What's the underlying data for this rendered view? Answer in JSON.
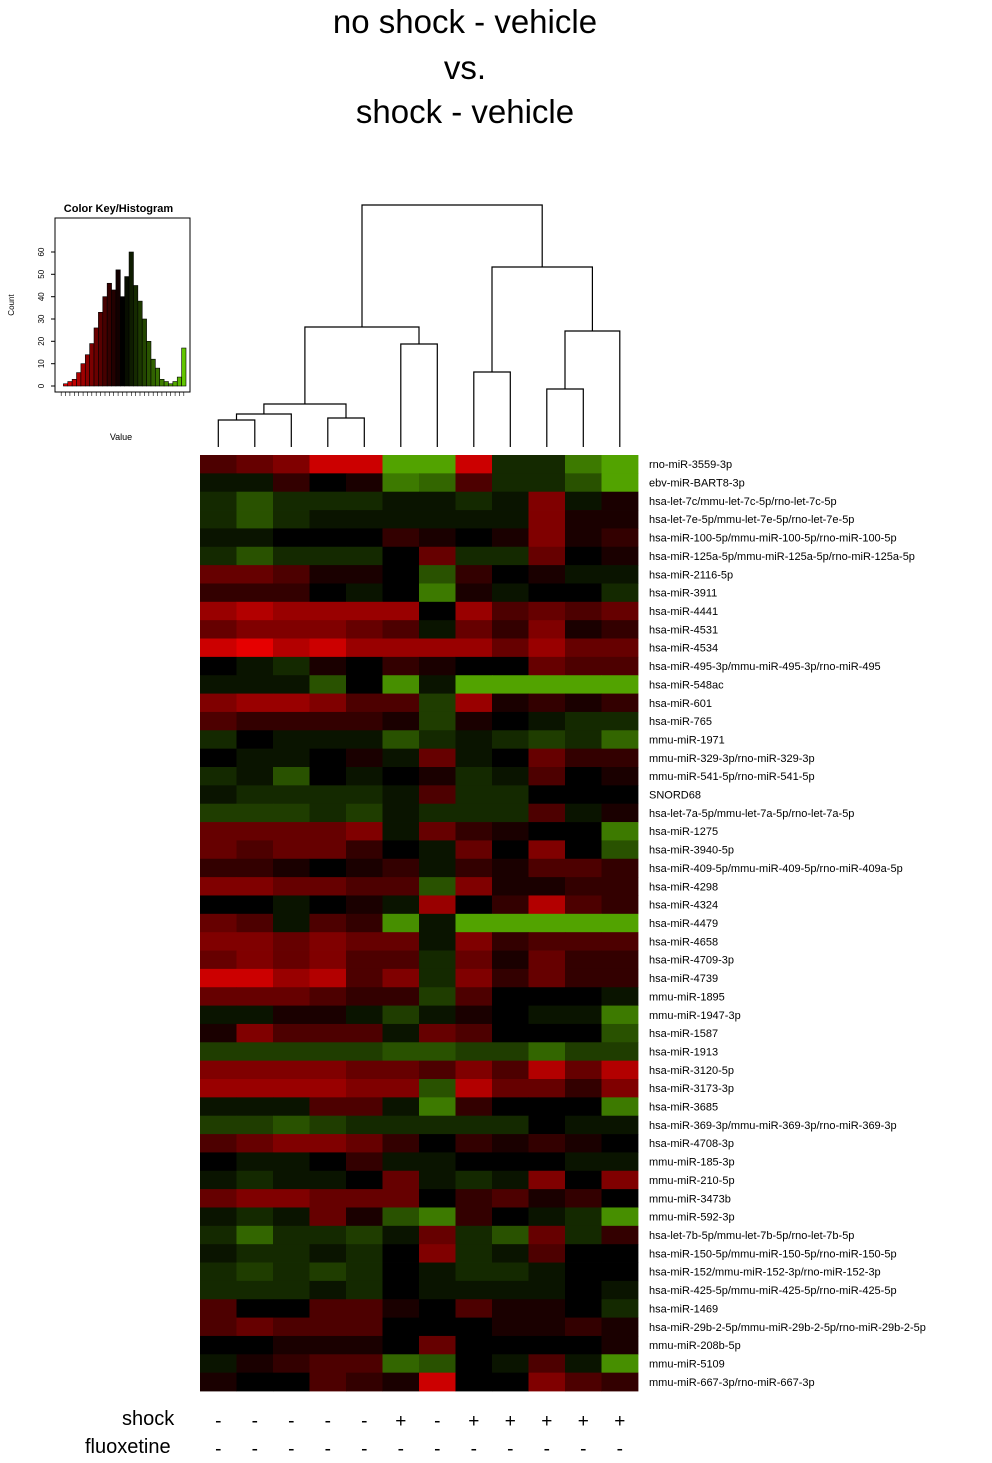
{
  "title": {
    "line1": "no shock - vehicle",
    "line2": "vs.",
    "line3": "shock - vehicle"
  },
  "conditions": {
    "shock_label": "shock",
    "fluoxetine_label": "fluoxetine",
    "shock": [
      "-",
      "-",
      "-",
      "-",
      "-",
      "+",
      "-",
      "+",
      "+",
      "+",
      "+",
      "+"
    ],
    "fluoxetine": [
      "-",
      "-",
      "-",
      "-",
      "-",
      "-",
      "-",
      "-",
      "-",
      "-",
      "-",
      "-"
    ]
  },
  "colors": {
    "low": "#ff0000",
    "mid": "#000000",
    "high": "#66cc00"
  },
  "chart_data": [
    {
      "type": "heatmap",
      "n_columns": 12,
      "scale": "z-score, -1 = red, 0 = black, 1 = green",
      "rows": [
        "rno-miR-3559-3p",
        "ebv-miR-BART8-3p",
        "hsa-let-7c/mmu-let-7c-5p/rno-let-7c-5p",
        "hsa-let-7e-5p/mmu-let-7e-5p/rno-let-7e-5p",
        "hsa-miR-100-5p/mmu-miR-100-5p/rno-miR-100-5p",
        "hsa-miR-125a-5p/mmu-miR-125a-5p/rno-miR-125a-5p",
        "hsa-miR-2116-5p",
        "hsa-miR-3911",
        "hsa-miR-4441",
        "hsa-miR-4531",
        "hsa-miR-4534",
        "hsa-miR-495-3p/mmu-miR-495-3p/rno-miR-495",
        "hsa-miR-548ac",
        "hsa-miR-601",
        "hsa-miR-765",
        "mmu-miR-1971",
        "mmu-miR-329-3p/rno-miR-329-3p",
        "mmu-miR-541-5p/rno-miR-541-5p",
        "SNORD68",
        "hsa-let-7a-5p/mmu-let-7a-5p/rno-let-7a-5p",
        "hsa-miR-1275",
        "hsa-miR-3940-5p",
        "hsa-miR-409-5p/mmu-miR-409-5p/rno-miR-409a-5p",
        "hsa-miR-4298",
        "hsa-miR-4324",
        "hsa-miR-4479",
        "hsa-miR-4658",
        "hsa-miR-4709-3p",
        "hsa-miR-4739",
        "mmu-miR-1895",
        "mmu-miR-1947-3p",
        "hsa-miR-1587",
        "hsa-miR-1913",
        "hsa-miR-3120-5p",
        "hsa-miR-3173-3p",
        "hsa-miR-3685",
        "hsa-miR-369-3p/mmu-miR-369-3p/rno-miR-369-3p",
        "hsa-miR-4708-3p",
        "mmu-miR-185-3p",
        "mmu-miR-210-5p",
        "mmu-miR-3473b",
        "mmu-miR-592-3p",
        "hsa-let-7b-5p/mmu-let-7b-5p/rno-let-7b-5p",
        "hsa-miR-150-5p/mmu-miR-150-5p/rno-miR-150-5p",
        "hsa-miR-152/mmu-miR-152-3p/rno-miR-152-3p",
        "hsa-miR-425-5p/mmu-miR-425-5p/rno-miR-425-5p",
        "hsa-miR-1469",
        "hsa-miR-29b-2-5p/mmu-miR-29b-2-5p/rno-miR-29b-2-5p",
        "mmu-miR-208b-5p",
        "mmu-miR-5109",
        "mmu-miR-667-3p/rno-miR-667-3p"
      ],
      "values": [
        [
          -0.3,
          -0.4,
          -0.5,
          -0.8,
          -0.8,
          0.8,
          0.8,
          -0.8,
          0.2,
          0.2,
          0.6,
          0.8
        ],
        [
          0.1,
          0.1,
          -0.2,
          0.0,
          -0.1,
          0.6,
          0.5,
          -0.3,
          0.2,
          0.2,
          0.4,
          0.8
        ],
        [
          0.2,
          0.4,
          0.2,
          0.2,
          0.2,
          0.1,
          0.1,
          0.2,
          0.1,
          -0.5,
          0.1,
          -0.1
        ],
        [
          0.2,
          0.4,
          0.2,
          0.1,
          0.1,
          0.1,
          0.1,
          0.1,
          0.1,
          -0.5,
          -0.1,
          -0.1
        ],
        [
          0.1,
          0.1,
          0.0,
          0.0,
          0.0,
          -0.2,
          -0.1,
          0.0,
          -0.1,
          -0.5,
          -0.1,
          -0.2
        ],
        [
          0.2,
          0.4,
          0.2,
          0.2,
          0.2,
          0.0,
          -0.4,
          0.2,
          0.2,
          -0.4,
          0.0,
          -0.1
        ],
        [
          -0.4,
          -0.4,
          -0.3,
          -0.1,
          -0.1,
          0.0,
          0.4,
          -0.2,
          0.0,
          -0.1,
          0.1,
          0.1
        ],
        [
          -0.2,
          -0.2,
          -0.2,
          0.0,
          0.1,
          0.0,
          0.6,
          -0.1,
          0.1,
          0.0,
          0.0,
          0.2
        ],
        [
          -0.6,
          -0.7,
          -0.6,
          -0.6,
          -0.6,
          -0.6,
          0.0,
          -0.6,
          -0.3,
          -0.4,
          -0.3,
          -0.4
        ],
        [
          -0.4,
          -0.5,
          -0.5,
          -0.5,
          -0.4,
          -0.3,
          0.1,
          -0.4,
          -0.2,
          -0.5,
          -0.1,
          -0.2
        ],
        [
          -0.8,
          -0.9,
          -0.7,
          -0.8,
          -0.6,
          -0.6,
          -0.6,
          -0.6,
          -0.4,
          -0.6,
          -0.4,
          -0.4
        ],
        [
          0.0,
          0.1,
          0.2,
          -0.1,
          0.0,
          -0.2,
          -0.1,
          0.0,
          0.0,
          -0.4,
          -0.3,
          -0.3
        ],
        [
          0.1,
          0.1,
          0.1,
          0.4,
          0.0,
          0.7,
          0.1,
          0.8,
          0.8,
          0.8,
          0.8,
          0.8
        ],
        [
          -0.5,
          -0.6,
          -0.6,
          -0.5,
          -0.3,
          -0.3,
          0.3,
          -0.6,
          -0.1,
          -0.2,
          -0.1,
          -0.2
        ],
        [
          -0.3,
          -0.2,
          -0.2,
          -0.2,
          -0.2,
          -0.1,
          0.3,
          -0.1,
          0.0,
          0.1,
          0.2,
          0.2
        ],
        [
          0.2,
          0.0,
          0.1,
          0.1,
          0.1,
          0.4,
          0.2,
          0.1,
          0.2,
          0.3,
          0.2,
          0.5
        ],
        [
          0.0,
          0.1,
          0.1,
          0.0,
          -0.1,
          0.1,
          -0.4,
          0.1,
          0.0,
          -0.4,
          -0.2,
          -0.2
        ],
        [
          0.2,
          0.1,
          0.4,
          0.0,
          0.1,
          0.0,
          -0.1,
          0.2,
          0.1,
          -0.3,
          0.0,
          -0.1
        ],
        [
          0.1,
          0.2,
          0.2,
          0.2,
          0.2,
          0.1,
          -0.3,
          0.2,
          0.2,
          0.0,
          0.0,
          0.0
        ],
        [
          0.3,
          0.3,
          0.3,
          0.2,
          0.3,
          0.1,
          0.2,
          0.2,
          0.2,
          -0.3,
          0.1,
          -0.1
        ],
        [
          -0.4,
          -0.4,
          -0.4,
          -0.4,
          -0.5,
          0.1,
          -0.4,
          -0.2,
          -0.1,
          0.0,
          0.0,
          0.6
        ],
        [
          -0.4,
          -0.3,
          -0.4,
          -0.4,
          -0.2,
          0.0,
          0.1,
          -0.4,
          0.0,
          -0.5,
          0.0,
          0.4
        ],
        [
          -0.2,
          -0.2,
          -0.1,
          0.0,
          -0.1,
          -0.2,
          0.1,
          -0.2,
          -0.1,
          -0.3,
          -0.3,
          -0.2
        ],
        [
          -0.5,
          -0.5,
          -0.4,
          -0.4,
          -0.3,
          -0.3,
          0.4,
          -0.5,
          -0.1,
          -0.1,
          -0.2,
          -0.2
        ],
        [
          0.0,
          0.0,
          0.1,
          0.0,
          -0.1,
          0.1,
          -0.6,
          0.0,
          -0.2,
          -0.7,
          -0.3,
          -0.2
        ],
        [
          -0.4,
          -0.3,
          0.1,
          -0.3,
          -0.2,
          0.7,
          0.1,
          0.8,
          0.8,
          0.8,
          0.8,
          0.8
        ],
        [
          -0.5,
          -0.5,
          -0.4,
          -0.5,
          -0.4,
          -0.4,
          0.1,
          -0.5,
          -0.2,
          -0.3,
          -0.3,
          -0.3
        ],
        [
          -0.4,
          -0.5,
          -0.4,
          -0.5,
          -0.3,
          -0.3,
          0.2,
          -0.4,
          -0.1,
          -0.4,
          -0.2,
          -0.2
        ],
        [
          -0.8,
          -0.8,
          -0.6,
          -0.7,
          -0.3,
          -0.5,
          0.2,
          -0.5,
          -0.2,
          -0.4,
          -0.2,
          -0.2
        ],
        [
          -0.4,
          -0.4,
          -0.4,
          -0.3,
          -0.2,
          -0.2,
          0.3,
          -0.3,
          0.0,
          0.0,
          0.0,
          0.1
        ],
        [
          0.1,
          0.1,
          -0.1,
          -0.1,
          0.1,
          0.3,
          0.1,
          -0.1,
          0.0,
          0.1,
          0.1,
          0.6
        ],
        [
          -0.1,
          -0.5,
          -0.3,
          -0.3,
          -0.3,
          0.1,
          -0.4,
          -0.3,
          0.0,
          0.0,
          0.0,
          0.4
        ],
        [
          0.3,
          0.3,
          0.3,
          0.3,
          0.3,
          0.4,
          0.4,
          0.3,
          0.3,
          0.5,
          0.3,
          0.3
        ],
        [
          -0.5,
          -0.5,
          -0.5,
          -0.5,
          -0.4,
          -0.4,
          -0.3,
          -0.5,
          -0.3,
          -0.7,
          -0.4,
          -0.7
        ],
        [
          -0.6,
          -0.6,
          -0.6,
          -0.6,
          -0.5,
          -0.5,
          0.4,
          -0.7,
          -0.4,
          -0.4,
          -0.2,
          -0.5
        ],
        [
          0.1,
          0.1,
          0.1,
          -0.3,
          -0.3,
          0.1,
          0.6,
          -0.2,
          0.0,
          0.0,
          0.0,
          0.6
        ],
        [
          0.3,
          0.3,
          0.4,
          0.3,
          0.2,
          0.2,
          0.2,
          0.2,
          0.2,
          0.0,
          0.1,
          0.1
        ],
        [
          -0.3,
          -0.4,
          -0.5,
          -0.5,
          -0.4,
          -0.2,
          0.0,
          -0.2,
          -0.1,
          -0.2,
          -0.1,
          0.0
        ],
        [
          0.0,
          0.1,
          0.1,
          0.0,
          -0.2,
          0.1,
          0.1,
          0.0,
          0.0,
          0.0,
          0.1,
          0.1
        ],
        [
          0.1,
          0.2,
          0.1,
          0.1,
          0.0,
          -0.4,
          0.1,
          0.2,
          0.1,
          -0.5,
          0.0,
          -0.5
        ],
        [
          -0.4,
          -0.5,
          -0.5,
          -0.4,
          -0.4,
          -0.4,
          0.0,
          -0.2,
          -0.3,
          -0.1,
          -0.2,
          0.0
        ],
        [
          0.1,
          0.2,
          0.1,
          -0.4,
          -0.1,
          0.4,
          0.6,
          -0.2,
          0.0,
          0.1,
          0.2,
          0.7
        ],
        [
          0.2,
          0.5,
          0.2,
          0.2,
          0.3,
          0.1,
          -0.4,
          0.2,
          0.4,
          -0.4,
          0.2,
          -0.2
        ],
        [
          0.1,
          0.2,
          0.2,
          0.1,
          0.2,
          0.0,
          -0.5,
          0.2,
          0.1,
          -0.3,
          0.0,
          0.0
        ],
        [
          0.2,
          0.3,
          0.2,
          0.3,
          0.2,
          0.0,
          0.1,
          0.2,
          0.2,
          0.1,
          0.0,
          0.0
        ],
        [
          0.2,
          0.2,
          0.2,
          0.1,
          0.2,
          0.0,
          0.1,
          0.1,
          0.1,
          0.1,
          0.0,
          0.1
        ],
        [
          -0.3,
          0.0,
          0.0,
          -0.3,
          -0.3,
          -0.1,
          0.0,
          -0.3,
          -0.1,
          -0.1,
          0.0,
          0.2
        ],
        [
          -0.3,
          -0.4,
          -0.3,
          -0.3,
          -0.3,
          0.0,
          0.0,
          0.0,
          -0.1,
          -0.1,
          -0.2,
          -0.1
        ],
        [
          0.0,
          0.0,
          -0.1,
          -0.1,
          -0.1,
          0.0,
          -0.4,
          0.0,
          0.0,
          0.0,
          0.0,
          -0.1
        ],
        [
          0.1,
          -0.1,
          -0.2,
          -0.3,
          -0.3,
          0.5,
          0.4,
          0.0,
          0.1,
          -0.3,
          0.1,
          0.7
        ],
        [
          -0.1,
          0.0,
          0.0,
          -0.3,
          -0.2,
          -0.1,
          -0.8,
          0.0,
          0.0,
          -0.5,
          -0.3,
          -0.2
        ]
      ]
    },
    {
      "type": "bar",
      "title": "Color Key/Histogram",
      "xlabel": "Value",
      "ylabel": "Count",
      "ylim": [
        0,
        60
      ],
      "yticks": [
        0,
        10,
        20,
        30,
        40,
        50,
        60
      ],
      "values": [
        0,
        1,
        2,
        3,
        6,
        10,
        14,
        19,
        26,
        33,
        40,
        46,
        43,
        52,
        40,
        49,
        60,
        45,
        38,
        30,
        20,
        12,
        8,
        3,
        2,
        1,
        2,
        4,
        17
      ]
    }
  ]
}
